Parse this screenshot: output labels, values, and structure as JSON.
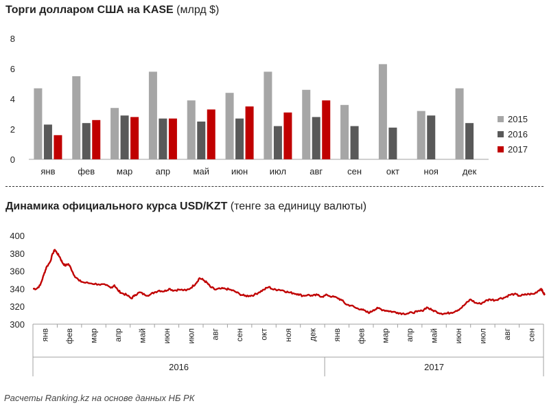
{
  "chart_data": [
    {
      "type": "bar",
      "title_bold": "Торги долларом США на KASE",
      "title_unit": " (млрд  $)",
      "categories": [
        "янв",
        "фев",
        "мар",
        "апр",
        "май",
        "июн",
        "июл",
        "авг",
        "сен",
        "окт",
        "ноя",
        "дек"
      ],
      "ylim": [
        0,
        8
      ],
      "yticks": [
        0,
        2,
        4,
        6,
        8
      ],
      "series": [
        {
          "name": "2015",
          "color": "#a6a6a6",
          "values": [
            4.7,
            5.5,
            3.4,
            5.8,
            3.9,
            4.4,
            5.8,
            4.6,
            3.6,
            6.3,
            3.2,
            4.7
          ]
        },
        {
          "name": "2016",
          "color": "#595959",
          "values": [
            2.3,
            2.4,
            2.9,
            2.7,
            2.5,
            2.7,
            2.2,
            2.8,
            2.2,
            2.1,
            2.9,
            2.4
          ]
        },
        {
          "name": "2017",
          "color": "#c00000",
          "values": [
            1.6,
            2.6,
            2.8,
            2.7,
            3.3,
            3.5,
            3.1,
            3.9,
            null,
            null,
            null,
            null
          ]
        }
      ],
      "legend_position": "right",
      "grid": false
    },
    {
      "type": "line",
      "title_bold": "Динамика официального курса USD/KZT",
      "title_unit": " (тенге за единицу валюты)",
      "ylim": [
        300,
        400
      ],
      "yticks": [
        300,
        320,
        340,
        360,
        380,
        400
      ],
      "months": [
        "янв",
        "фев",
        "мар",
        "апр",
        "май",
        "июн",
        "июл",
        "авг",
        "сен",
        "окт",
        "ноя",
        "дек",
        "янв",
        "фев",
        "мар",
        "апр",
        "май",
        "июн",
        "июл",
        "авг",
        "сен"
      ],
      "years": [
        {
          "label": "2016",
          "months": 12
        },
        {
          "label": "2017",
          "months": 9
        }
      ],
      "color": "#c00000",
      "anchors": [
        [
          0,
          340
        ],
        [
          0.15,
          340
        ],
        [
          0.3,
          344
        ],
        [
          0.45,
          356
        ],
        [
          0.55,
          364
        ],
        [
          0.7,
          370
        ],
        [
          0.82,
          380
        ],
        [
          0.9,
          384
        ],
        [
          1.0,
          380
        ],
        [
          1.1,
          376
        ],
        [
          1.2,
          370
        ],
        [
          1.32,
          366
        ],
        [
          1.45,
          368
        ],
        [
          1.55,
          364
        ],
        [
          1.7,
          355
        ],
        [
          1.9,
          349
        ],
        [
          2.1,
          347
        ],
        [
          2.4,
          346
        ],
        [
          2.7,
          345
        ],
        [
          3.0,
          344
        ],
        [
          3.2,
          341
        ],
        [
          3.35,
          344
        ],
        [
          3.5,
          338
        ],
        [
          3.65,
          335
        ],
        [
          3.85,
          333
        ],
        [
          4.05,
          329
        ],
        [
          4.2,
          333
        ],
        [
          4.4,
          336
        ],
        [
          4.6,
          333
        ],
        [
          4.8,
          333
        ],
        [
          5.0,
          336
        ],
        [
          5.2,
          338
        ],
        [
          5.4,
          337
        ],
        [
          5.6,
          340
        ],
        [
          5.8,
          338
        ],
        [
          6.0,
          339
        ],
        [
          6.3,
          338
        ],
        [
          6.5,
          341
        ],
        [
          6.7,
          346
        ],
        [
          6.85,
          352
        ],
        [
          7.0,
          350
        ],
        [
          7.15,
          347
        ],
        [
          7.3,
          342
        ],
        [
          7.5,
          339
        ],
        [
          7.7,
          340
        ],
        [
          7.9,
          340
        ],
        [
          8.1,
          339
        ],
        [
          8.3,
          337
        ],
        [
          8.5,
          334
        ],
        [
          8.7,
          332
        ],
        [
          8.9,
          332
        ],
        [
          9.1,
          333
        ],
        [
          9.3,
          336
        ],
        [
          9.5,
          339
        ],
        [
          9.7,
          342
        ],
        [
          9.9,
          339
        ],
        [
          10.1,
          339
        ],
        [
          10.3,
          338
        ],
        [
          10.5,
          336
        ],
        [
          10.7,
          335
        ],
        [
          10.9,
          334
        ],
        [
          11.1,
          332
        ],
        [
          11.3,
          333
        ],
        [
          11.5,
          332
        ],
        [
          11.7,
          333
        ],
        [
          11.9,
          331
        ],
        [
          12.1,
          333
        ],
        [
          12.3,
          331
        ],
        [
          12.5,
          330
        ],
        [
          12.7,
          327
        ],
        [
          12.9,
          322
        ],
        [
          13.1,
          321
        ],
        [
          13.3,
          318
        ],
        [
          13.5,
          317
        ],
        [
          13.7,
          314
        ],
        [
          13.85,
          313
        ],
        [
          14.0,
          316
        ],
        [
          14.2,
          318
        ],
        [
          14.4,
          316
        ],
        [
          14.6,
          315
        ],
        [
          14.8,
          314
        ],
        [
          15.0,
          313
        ],
        [
          15.2,
          312
        ],
        [
          15.4,
          312
        ],
        [
          15.6,
          313
        ],
        [
          15.8,
          314
        ],
        [
          16.0,
          315
        ],
        [
          16.2,
          319
        ],
        [
          16.4,
          316
        ],
        [
          16.6,
          314
        ],
        [
          16.8,
          312
        ],
        [
          17.0,
          312
        ],
        [
          17.2,
          313
        ],
        [
          17.4,
          315
        ],
        [
          17.6,
          318
        ],
        [
          17.8,
          323
        ],
        [
          18.0,
          328
        ],
        [
          18.2,
          324
        ],
        [
          18.4,
          323
        ],
        [
          18.6,
          326
        ],
        [
          18.8,
          328
        ],
        [
          19.0,
          327
        ],
        [
          19.2,
          329
        ],
        [
          19.4,
          330
        ],
        [
          19.6,
          333
        ],
        [
          19.8,
          334
        ],
        [
          20.0,
          332
        ],
        [
          20.2,
          333
        ],
        [
          20.4,
          334
        ],
        [
          20.6,
          334
        ],
        [
          20.8,
          338
        ],
        [
          20.9,
          340
        ],
        [
          21.0,
          335
        ],
        [
          21.05,
          333
        ]
      ]
    }
  ],
  "footnote": "Расчеты Ranking.kz на основе данных  НБ РК"
}
